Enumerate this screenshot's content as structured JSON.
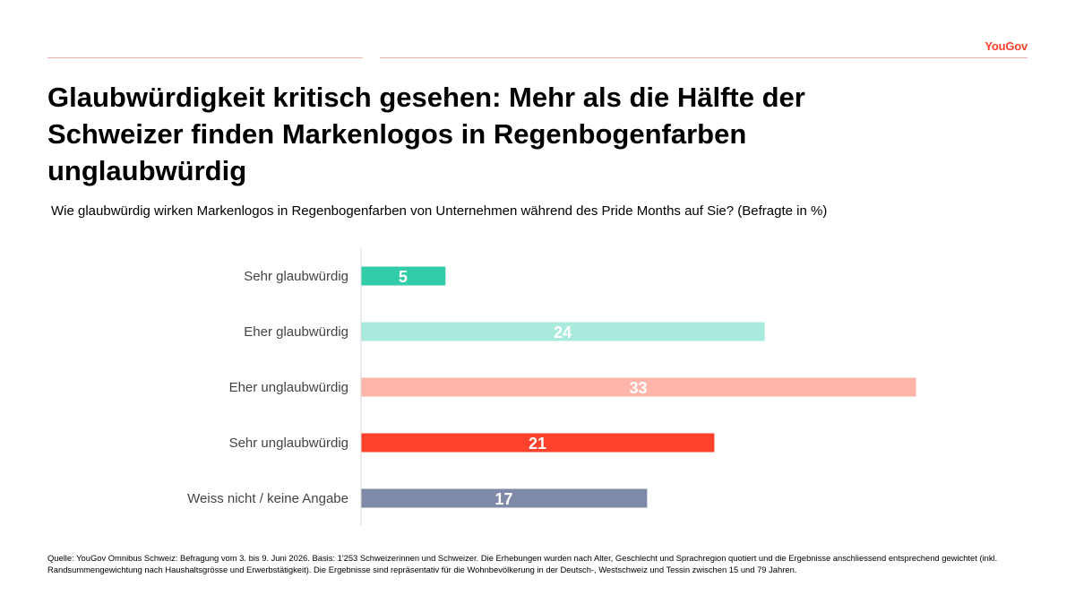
{
  "brand": {
    "logo_text": "YouGov",
    "accent": "#ff412c"
  },
  "header": {
    "title": "Glaubwürdigkeit kritisch gesehen: Mehr als die Hälfte der Schweizer finden Markenlogos in Regenbogenfarben unglaubwürdig",
    "subtitle": "Wie glaubwürdig wirken Markenlogos in Regenbogenfarben von Unternehmen während des Pride Months auf Sie? (Befragte in %)"
  },
  "chart_data": {
    "type": "bar",
    "orientation": "horizontal",
    "categories": [
      "Sehr glaubwürdig",
      "Eher glaubwürdig",
      "Eher unglaubwürdig",
      "Sehr unglaubwürdig",
      "Weiss nicht / keine Angabe"
    ],
    "values": [
      5,
      24,
      33,
      21,
      17
    ],
    "colors": [
      "#33cca8",
      "#aaeadc",
      "#ffb5aa",
      "#ff412c",
      "#7f8aa8"
    ],
    "xlim": [
      0,
      33
    ],
    "grid": false,
    "legend": "none"
  },
  "footer": {
    "source": "Quelle: YouGov Omnibus Schweiz: Befragung vom 3. bis 9. Juni 2026. Basis: 1'253 Schweizerinnen und Schweizer. Die Erhebungen wurden nach Alter, Geschlecht und Sprachregion quotiert und die Ergebnisse anschliessend entsprechend gewichtet (inkl. Randsummengewichtung nach Haushaltsgrösse und Erwerbstätigkeit). Die Ergebnisse sind repräsentativ für die Wohnbevölkerung in der Deutsch-, Westschweiz und Tessin zwischen 15 und 79 Jahren."
  }
}
